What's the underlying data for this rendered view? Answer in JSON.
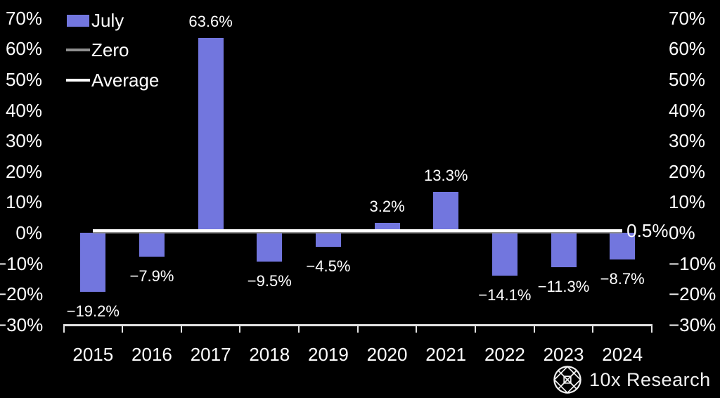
{
  "chart_data": {
    "type": "bar",
    "title": "",
    "categories": [
      "2015",
      "2016",
      "2017",
      "2018",
      "2019",
      "2020",
      "2021",
      "2022",
      "2023",
      "2024"
    ],
    "series": [
      {
        "name": "July",
        "color": "#7276de",
        "values": [
          -19.2,
          -7.9,
          63.6,
          -9.5,
          -4.5,
          3.2,
          13.3,
          -14.1,
          -11.3,
          -8.7
        ],
        "value_labels": [
          "−19.2%",
          "−7.9%",
          "63.6%",
          "−9.5%",
          "−4.5%",
          "3.2%",
          "13.3%",
          "−14.1%",
          "−11.3%",
          "−8.7%"
        ]
      }
    ],
    "reference_lines": [
      {
        "name": "Zero",
        "value": 0,
        "color": "#8f8f8f",
        "end_label": ""
      },
      {
        "name": "Average",
        "value": 0.5,
        "color": "#ffffff",
        "end_label": "0.5%"
      }
    ],
    "y_ticks": [
      {
        "value": 70,
        "label": "70%"
      },
      {
        "value": 60,
        "label": "60%"
      },
      {
        "value": 50,
        "label": "50%"
      },
      {
        "value": 40,
        "label": "40%"
      },
      {
        "value": 30,
        "label": "30%"
      },
      {
        "value": 20,
        "label": "20%"
      },
      {
        "value": 10,
        "label": "10%"
      },
      {
        "value": 0,
        "label": "0%"
      },
      {
        "value": -10,
        "label": "−10%"
      },
      {
        "value": -20,
        "label": "−20%"
      },
      {
        "value": -30,
        "label": "−30%"
      }
    ],
    "ylim": [
      -30,
      70
    ],
    "grid": false,
    "legend_position": "top-left",
    "legend": [
      {
        "label": "July",
        "swatch": "rect",
        "color": "#7276de"
      },
      {
        "label": "Zero",
        "swatch": "line",
        "color": "#8f8f8f"
      },
      {
        "label": "Average",
        "swatch": "line",
        "color": "#ffffff"
      }
    ]
  },
  "branding": {
    "logo_icon": "lattice-globe-icon",
    "logo_text": "10x Research"
  },
  "colors": {
    "background": "#000000",
    "text": "#ffffff",
    "bar": "#7276de",
    "zero_line": "#8f8f8f",
    "average_line": "#ffffff",
    "axis": "#e3e3e3"
  }
}
